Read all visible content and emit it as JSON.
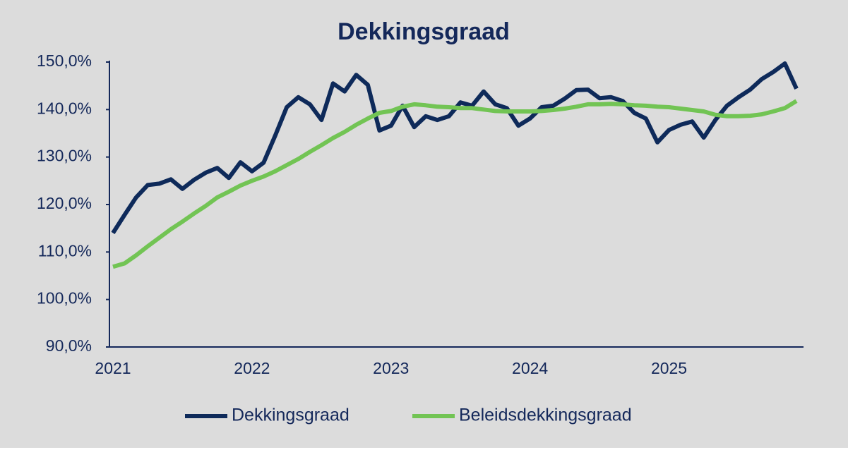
{
  "chart_data": {
    "type": "line",
    "title": "Dekkingsgraad",
    "categories": [
      "2021",
      null,
      null,
      null,
      null,
      null,
      null,
      null,
      null,
      null,
      null,
      null,
      "2022",
      null,
      null,
      null,
      null,
      null,
      null,
      null,
      null,
      null,
      null,
      null,
      "2023",
      null,
      null,
      null,
      null,
      null,
      null,
      null,
      null,
      null,
      null,
      null,
      "2024",
      null,
      null,
      null,
      null,
      null,
      null,
      null,
      null,
      null,
      null,
      null,
      "2025",
      null,
      null,
      null,
      null,
      null,
      null,
      null,
      null,
      null,
      null,
      null
    ],
    "series": [
      {
        "name": "Dekkingsgraad",
        "color": "#0e2a5a",
        "values": [
          114.0,
          117.8,
          121.5,
          124.1,
          124.4,
          125.3,
          123.3,
          125.2,
          126.7,
          127.7,
          125.6,
          128.9,
          127.0,
          128.8,
          134.5,
          140.5,
          142.6,
          141.1,
          137.8,
          145.5,
          143.8,
          147.3,
          145.2,
          135.6,
          136.6,
          140.8,
          136.3,
          138.6,
          137.8,
          138.6,
          141.5,
          140.8,
          143.8,
          141.1,
          140.3,
          136.6,
          138.1,
          140.5,
          140.8,
          142.3,
          144.1,
          144.2,
          142.4,
          142.6,
          141.8,
          139.3,
          138.1,
          133.1,
          135.7,
          136.8,
          137.5,
          134.1,
          137.8,
          140.8,
          142.6,
          144.2,
          146.4,
          147.9,
          149.7,
          144.4
        ]
      },
      {
        "name": "Beleidsdekkingsgraad",
        "color": "#72c454",
        "values": [
          106.9,
          107.6,
          109.3,
          111.2,
          113.0,
          114.8,
          116.4,
          118.1,
          119.7,
          121.5,
          122.7,
          124.0,
          125.0,
          125.9,
          127.0,
          128.3,
          129.6,
          131.1,
          132.5,
          134.0,
          135.3,
          136.8,
          138.1,
          139.3,
          139.7,
          140.6,
          141.1,
          140.9,
          140.6,
          140.5,
          140.3,
          140.3,
          140.0,
          139.7,
          139.6,
          139.6,
          139.6,
          139.7,
          139.9,
          140.2,
          140.6,
          141.1,
          141.1,
          141.2,
          141.1,
          140.9,
          140.8,
          140.6,
          140.5,
          140.2,
          139.9,
          139.6,
          138.9,
          138.6,
          138.6,
          138.7,
          139.0,
          139.6,
          140.3,
          141.8
        ]
      }
    ],
    "ylim": [
      90,
      150
    ],
    "yticks": [
      {
        "value": 90,
        "label": "90,0%"
      },
      {
        "value": 100,
        "label": "100,0%"
      },
      {
        "value": 110,
        "label": "110,0%"
      },
      {
        "value": 120,
        "label": "120,0%"
      },
      {
        "value": 130,
        "label": "130,0%"
      },
      {
        "value": 140,
        "label": "140,0%"
      },
      {
        "value": 150,
        "label": "150,0%"
      }
    ],
    "grid": false,
    "legend": "bottom"
  }
}
